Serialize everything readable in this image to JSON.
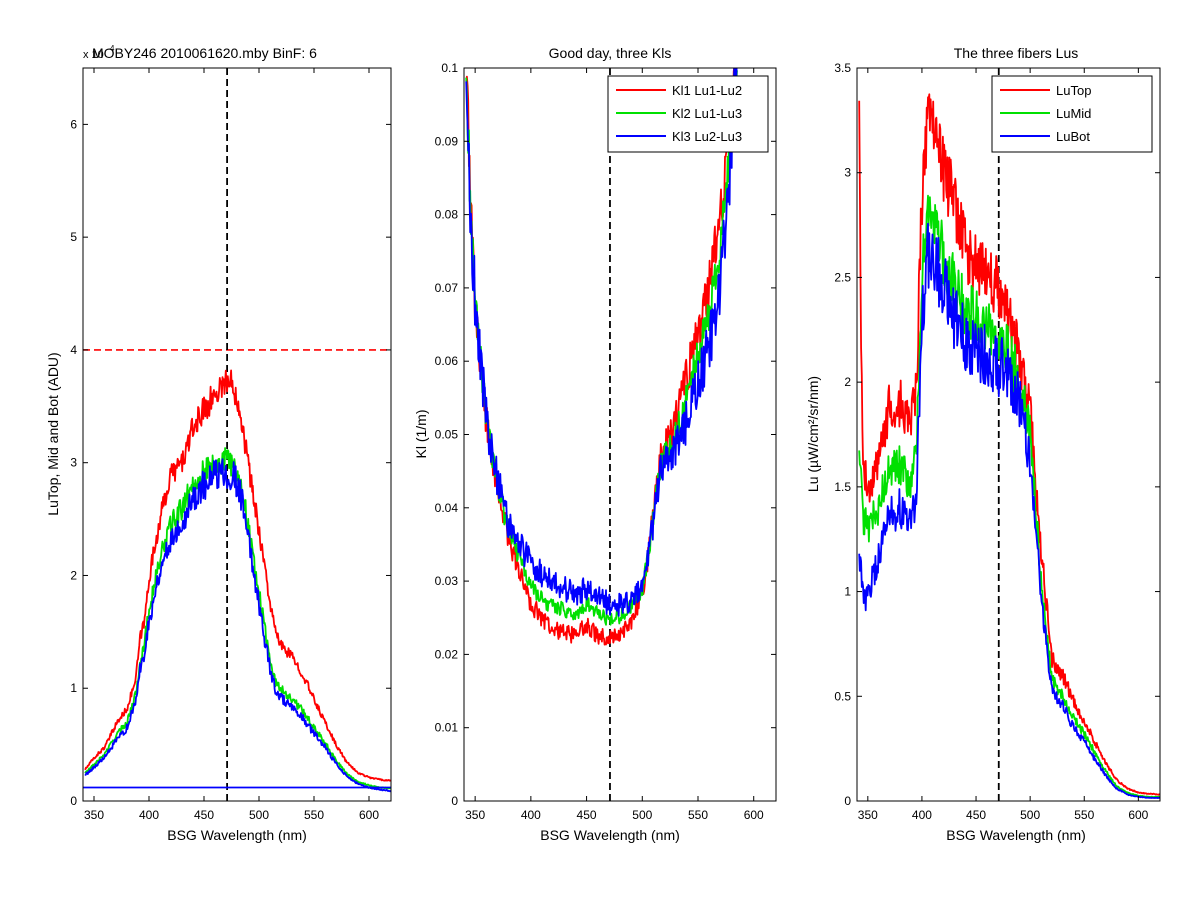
{
  "chart_data": [
    {
      "type": "line",
      "title": "MOBY246  2010061620.mby BinF: 6",
      "xlabel": "BSG Wavelength (nm)",
      "ylabel": "LuTop, Mid and Bot (ADU)",
      "y_exponent": {
        "base": "x 10",
        "power": "4"
      },
      "xlim": [
        340,
        620
      ],
      "ylim": [
        0,
        65000
      ],
      "xticks": [
        350,
        400,
        450,
        500,
        550,
        600
      ],
      "xtick_labels": [
        "350",
        "400",
        "450",
        "500",
        "550",
        "600"
      ],
      "yticks": [
        0,
        10000,
        20000,
        30000,
        40000,
        50000,
        60000
      ],
      "ytick_labels": [
        "0",
        "1",
        "2",
        "3",
        "4",
        "5",
        "6"
      ],
      "grid": false,
      "hlines": [
        {
          "y": 40000,
          "color": "#ff0000",
          "style": "dashed"
        }
      ],
      "vlines": [
        {
          "x": 471,
          "color": "#000000",
          "style": "dashed"
        }
      ],
      "series": [
        {
          "color": "#ff0000",
          "noise": 0.035,
          "x": [
            342,
            350,
            360,
            370,
            380,
            388,
            392,
            396,
            400,
            410,
            420,
            430,
            440,
            450,
            460,
            468,
            475,
            480,
            485,
            490,
            495,
            500,
            505,
            510,
            515,
            520,
            530,
            540,
            550,
            560,
            570,
            580,
            590,
            600,
            610,
            620
          ],
          "y": [
            2800,
            3800,
            4800,
            6800,
            8200,
            10800,
            14500,
            16000,
            19800,
            25000,
            29000,
            30000,
            33000,
            34800,
            36000,
            37200,
            37000,
            36000,
            33500,
            30000,
            27000,
            24000,
            21000,
            17500,
            15000,
            13800,
            12800,
            11200,
            9000,
            7000,
            5000,
            3400,
            2500,
            2100,
            1900,
            1800
          ]
        },
        {
          "color": "#00e000",
          "noise": 0.04,
          "x": [
            342,
            350,
            360,
            370,
            380,
            388,
            392,
            396,
            400,
            410,
            420,
            430,
            440,
            450,
            460,
            468,
            475,
            480,
            485,
            490,
            495,
            500,
            505,
            510,
            515,
            520,
            530,
            540,
            550,
            560,
            570,
            580,
            590,
            600,
            610,
            620
          ],
          "y": [
            2500,
            3200,
            4200,
            5800,
            7000,
            9500,
            12500,
            14000,
            17000,
            21500,
            24500,
            26000,
            28000,
            29200,
            29800,
            30200,
            30000,
            29200,
            27500,
            24500,
            21500,
            18500,
            15500,
            12500,
            10500,
            10000,
            9000,
            8000,
            6500,
            5200,
            3600,
            2400,
            1700,
            1400,
            1200,
            1100
          ]
        },
        {
          "color": "#0000ff",
          "noise": 0.05,
          "x": [
            342,
            350,
            360,
            370,
            380,
            388,
            392,
            396,
            400,
            410,
            420,
            430,
            440,
            450,
            460,
            468,
            475,
            480,
            485,
            490,
            495,
            500,
            505,
            510,
            515,
            520,
            530,
            540,
            550,
            560,
            570,
            580,
            590,
            600,
            610,
            620
          ],
          "y": [
            2300,
            3000,
            3900,
            5300,
            6500,
            8800,
            11800,
            13200,
            16000,
            20500,
            23200,
            24800,
            26800,
            28000,
            28800,
            29300,
            29000,
            28200,
            26500,
            23500,
            20500,
            17500,
            14500,
            11800,
            9800,
            9200,
            8200,
            7300,
            6000,
            4800,
            3300,
            2200,
            1500,
            1200,
            1000,
            900
          ]
        },
        {
          "color": "#0000ff",
          "noise": 0,
          "x": [
            340,
            620
          ],
          "y": [
            1200,
            1200
          ]
        }
      ]
    },
    {
      "type": "line",
      "title": "Good day, three Kls",
      "xlabel": "BSG Wavelength (nm)",
      "ylabel": "Kl (1/m)",
      "xlim": [
        340,
        620
      ],
      "ylim": [
        0,
        0.1
      ],
      "xticks": [
        350,
        400,
        450,
        500,
        550,
        600
      ],
      "xtick_labels": [
        "350",
        "400",
        "450",
        "500",
        "550",
        "600"
      ],
      "yticks": [
        0,
        0.01,
        0.02,
        0.03,
        0.04,
        0.05,
        0.06,
        0.07,
        0.08,
        0.09,
        0.1
      ],
      "ytick_labels": [
        "0",
        "0.01",
        "0.02",
        "0.03",
        "0.04",
        "0.05",
        "0.06",
        "0.07",
        "0.08",
        "0.09",
        "0.1"
      ],
      "grid": false,
      "legend_position": "top-right",
      "vlines": [
        {
          "x": 471,
          "color": "#000000",
          "style": "dashed"
        }
      ],
      "series": [
        {
          "name": "Kl1 Lu1-Lu2",
          "color": "#ff0000",
          "noise": 0.05,
          "x": [
            342,
            346,
            350,
            355,
            360,
            370,
            380,
            390,
            400,
            410,
            420,
            430,
            440,
            450,
            460,
            470,
            480,
            490,
            500,
            505,
            510,
            515,
            520,
            530,
            540,
            550,
            560,
            570,
            575,
            580,
            585
          ],
          "y": [
            0.1,
            0.08,
            0.068,
            0.06,
            0.052,
            0.043,
            0.036,
            0.031,
            0.027,
            0.025,
            0.0235,
            0.023,
            0.0225,
            0.024,
            0.0225,
            0.0222,
            0.0228,
            0.0245,
            0.0285,
            0.033,
            0.04,
            0.046,
            0.048,
            0.052,
            0.058,
            0.064,
            0.07,
            0.079,
            0.086,
            0.094,
            0.101
          ]
        },
        {
          "name": "Kl2 Lu1-Lu3",
          "color": "#00e000",
          "noise": 0.04,
          "x": [
            342,
            346,
            350,
            355,
            360,
            370,
            380,
            390,
            400,
            410,
            420,
            430,
            440,
            450,
            460,
            470,
            480,
            490,
            500,
            505,
            510,
            515,
            520,
            530,
            540,
            550,
            560,
            570,
            575,
            580,
            585
          ],
          "y": [
            0.1,
            0.08,
            0.068,
            0.06,
            0.052,
            0.043,
            0.037,
            0.033,
            0.0295,
            0.0275,
            0.0265,
            0.026,
            0.0255,
            0.027,
            0.0255,
            0.0248,
            0.0252,
            0.0265,
            0.029,
            0.033,
            0.039,
            0.045,
            0.047,
            0.05,
            0.055,
            0.061,
            0.067,
            0.075,
            0.083,
            0.092,
            0.101
          ]
        },
        {
          "name": "Kl3 Lu2-Lu3",
          "color": "#0000ff",
          "noise": 0.06,
          "x": [
            342,
            346,
            350,
            355,
            360,
            370,
            380,
            390,
            400,
            410,
            420,
            430,
            440,
            450,
            460,
            470,
            480,
            490,
            500,
            505,
            510,
            515,
            520,
            530,
            540,
            550,
            560,
            570,
            575,
            580,
            585
          ],
          "y": [
            0.1,
            0.08,
            0.068,
            0.06,
            0.052,
            0.044,
            0.038,
            0.035,
            0.0325,
            0.0308,
            0.0298,
            0.029,
            0.028,
            0.029,
            0.0278,
            0.027,
            0.0268,
            0.027,
            0.0295,
            0.033,
            0.038,
            0.044,
            0.046,
            0.048,
            0.052,
            0.057,
            0.062,
            0.07,
            0.079,
            0.09,
            0.101
          ]
        }
      ]
    },
    {
      "type": "line",
      "title": "The three fibers Lus",
      "xlabel": "BSG Wavelength (nm)",
      "ylabel": "Lu (µW/cm²/sr/nm)",
      "xlim": [
        340,
        620
      ],
      "ylim": [
        0,
        3.5
      ],
      "xticks": [
        350,
        400,
        450,
        500,
        550,
        600
      ],
      "xtick_labels": [
        "350",
        "400",
        "450",
        "500",
        "550",
        "600"
      ],
      "yticks": [
        0,
        0.5,
        1,
        1.5,
        2,
        2.5,
        3,
        3.5
      ],
      "ytick_labels": [
        "0",
        "0.5",
        "1",
        "1.5",
        "2",
        "2.5",
        "3",
        "3.5"
      ],
      "grid": false,
      "legend_position": "top-right",
      "vlines": [
        {
          "x": 471,
          "color": "#000000",
          "style": "dashed"
        }
      ],
      "series": [
        {
          "name": "LuTop",
          "color": "#ff0000",
          "noise": 0.06,
          "x": [
            342,
            344,
            346,
            350,
            360,
            370,
            380,
            390,
            395,
            400,
            405,
            410,
            420,
            430,
            440,
            450,
            460,
            470,
            480,
            490,
            500,
            510,
            520,
            530,
            540,
            550,
            560,
            570,
            580,
            590,
            600,
            610,
            620
          ],
          "y": [
            3.4,
            2.0,
            1.6,
            1.5,
            1.6,
            1.9,
            1.9,
            1.8,
            2.0,
            2.9,
            3.2,
            3.2,
            3.0,
            2.85,
            2.65,
            2.55,
            2.5,
            2.45,
            2.35,
            2.1,
            1.85,
            1.2,
            0.68,
            0.6,
            0.48,
            0.38,
            0.28,
            0.18,
            0.1,
            0.06,
            0.04,
            0.035,
            0.03
          ]
        },
        {
          "name": "LuMid",
          "color": "#00e000",
          "noise": 0.06,
          "x": [
            342,
            346,
            350,
            360,
            370,
            380,
            390,
            395,
            400,
            405,
            410,
            420,
            430,
            440,
            450,
            460,
            470,
            480,
            490,
            500,
            510,
            520,
            530,
            540,
            550,
            560,
            570,
            580,
            590,
            600,
            610,
            620
          ],
          "y": [
            1.7,
            1.35,
            1.3,
            1.4,
            1.6,
            1.6,
            1.5,
            1.7,
            2.5,
            2.75,
            2.75,
            2.6,
            2.45,
            2.35,
            2.3,
            2.25,
            2.2,
            2.15,
            2.0,
            1.75,
            1.05,
            0.58,
            0.5,
            0.4,
            0.32,
            0.23,
            0.14,
            0.07,
            0.04,
            0.025,
            0.02,
            0.02
          ]
        },
        {
          "name": "LuBot",
          "color": "#0000ff",
          "noise": 0.07,
          "x": [
            342,
            346,
            350,
            360,
            370,
            380,
            390,
            395,
            400,
            405,
            410,
            420,
            430,
            440,
            450,
            460,
            470,
            480,
            490,
            500,
            510,
            520,
            530,
            540,
            550,
            560,
            570,
            580,
            590,
            600,
            610,
            620
          ],
          "y": [
            1.2,
            0.95,
            1.0,
            1.15,
            1.35,
            1.4,
            1.3,
            1.5,
            2.3,
            2.6,
            2.6,
            2.45,
            2.3,
            2.2,
            2.15,
            2.12,
            2.08,
            2.05,
            1.9,
            1.65,
            0.98,
            0.52,
            0.45,
            0.36,
            0.28,
            0.2,
            0.12,
            0.06,
            0.03,
            0.02,
            0.015,
            0.015
          ]
        }
      ]
    }
  ]
}
